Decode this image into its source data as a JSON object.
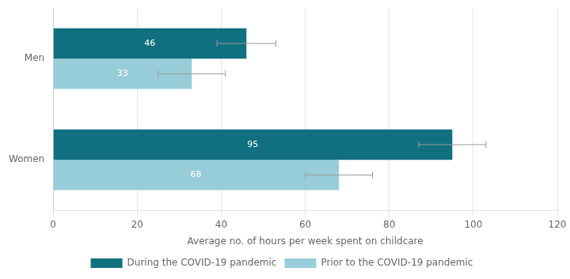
{
  "chart_data": {
    "type": "bar",
    "orientation": "horizontal",
    "categories": [
      "Men",
      "Women"
    ],
    "series": [
      {
        "name": "During the COVID-19 pandemic",
        "color": "#107080",
        "values": [
          46,
          95
        ],
        "errors": [
          7,
          8
        ]
      },
      {
        "name": "Prior to the COVID-19 pandemic",
        "color": "#96cdd8",
        "values": [
          33,
          68
        ],
        "errors": [
          8,
          8
        ]
      }
    ],
    "xlabel": "Average no. of hours per week spent on childcare",
    "xlim": [
      0,
      120
    ],
    "xticks": [
      0,
      20,
      40,
      60,
      80,
      100,
      120
    ],
    "grid": true,
    "data_labels": true,
    "legend": "bottom"
  }
}
